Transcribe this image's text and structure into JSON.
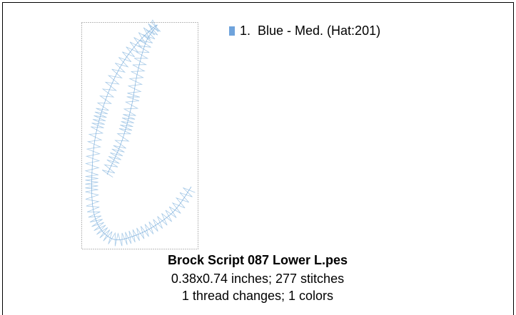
{
  "design": {
    "title": "Brock Script 087 Lower L.pes",
    "details": [
      "0.38x0.74 inches; 277 stitches",
      "1 thread changes; 1 colors"
    ]
  },
  "threads": [
    {
      "label": "1.  Blue - Med. (Hat:201)",
      "color": "#6fa3dc"
    }
  ]
}
